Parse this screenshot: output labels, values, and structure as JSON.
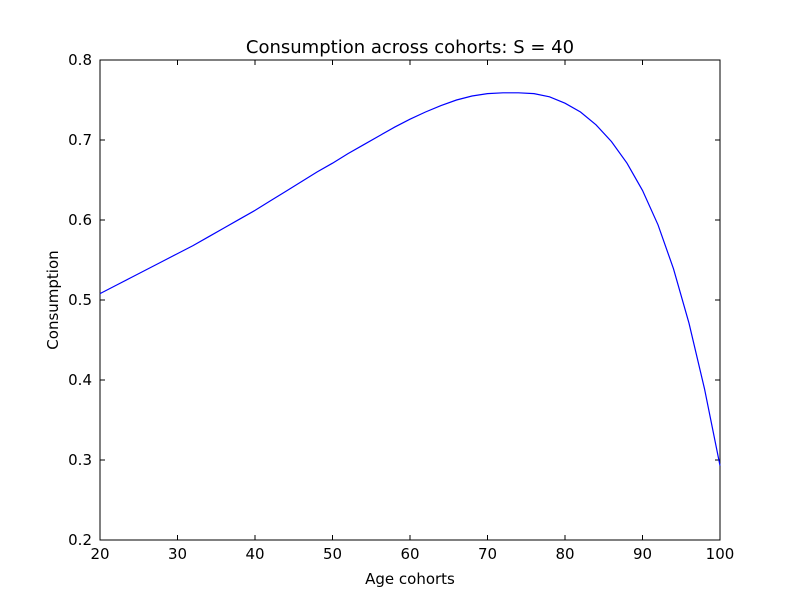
{
  "chart_data": {
    "type": "line",
    "title": "Consumption across cohorts: S = 40",
    "xlabel": "Age cohorts",
    "ylabel": "Consumption",
    "xlim": [
      20,
      100
    ],
    "ylim": [
      0.2,
      0.8
    ],
    "xticks": [
      "20",
      "30",
      "40",
      "50",
      "60",
      "70",
      "80",
      "90",
      "100"
    ],
    "yticks": [
      "0.2",
      "0.3",
      "0.4",
      "0.5",
      "0.6",
      "0.7",
      "0.8"
    ],
    "grid": false,
    "legend": "none",
    "series": [
      {
        "color": "#0000ff",
        "x": [
          20,
          22,
          24,
          26,
          28,
          30,
          32,
          34,
          36,
          38,
          40,
          42,
          44,
          46,
          48,
          50,
          52,
          54,
          56,
          58,
          60,
          62,
          64,
          66,
          68,
          70,
          72,
          74,
          76,
          78,
          80,
          82,
          84,
          86,
          88,
          90,
          92,
          94,
          96,
          98,
          100
        ],
        "y": [
          0.508,
          0.518,
          0.528,
          0.538,
          0.548,
          0.558,
          0.568,
          0.579,
          0.59,
          0.601,
          0.612,
          0.624,
          0.636,
          0.648,
          0.66,
          0.671,
          0.683,
          0.694,
          0.705,
          0.716,
          0.726,
          0.735,
          0.743,
          0.75,
          0.755,
          0.758,
          0.759,
          0.759,
          0.758,
          0.754,
          0.746,
          0.735,
          0.719,
          0.698,
          0.671,
          0.637,
          0.594,
          0.539,
          0.471,
          0.389,
          0.293
        ]
      }
    ]
  }
}
